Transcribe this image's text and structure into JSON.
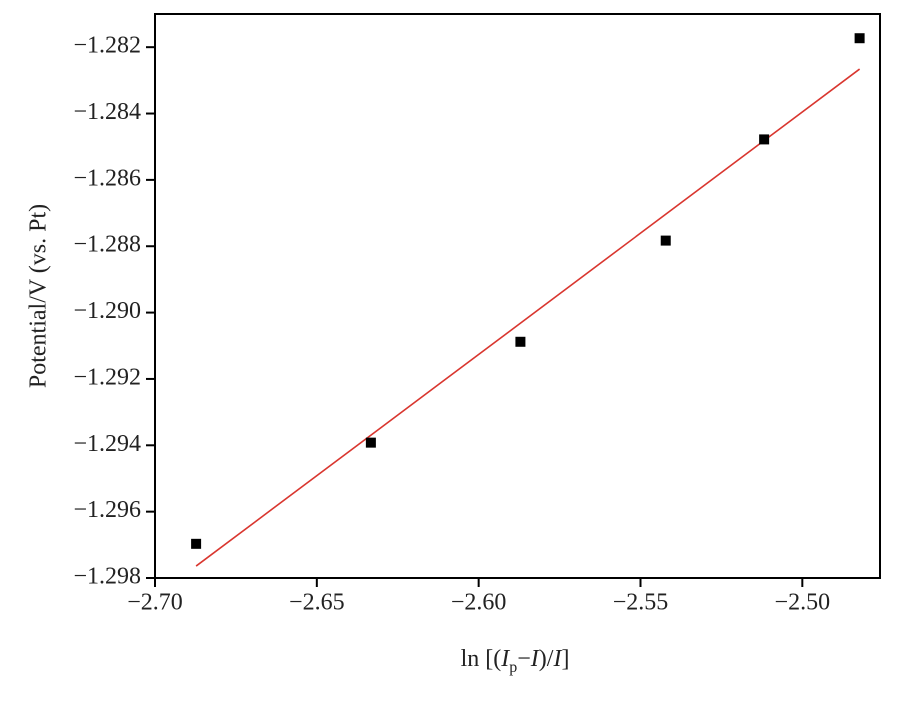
{
  "chart_data": {
    "type": "scatter",
    "x_label": [
      "ln [(",
      "I",
      "p",
      "−",
      "I",
      ")/",
      "I",
      "]"
    ],
    "y_label": "Potential/V (vs. Pt)",
    "x": [
      -2.6873,
      -2.6333,
      -2.5871,
      -2.5422,
      -2.5118,
      -2.4823
    ],
    "series": [
      {
        "color": "#000000",
        "values": [
          -1.29697,
          -1.29392,
          -1.29088,
          -1.28783,
          -1.28478,
          -1.28173
        ]
      }
    ],
    "fit": {
      "color": "#d9362f",
      "x": [
        -2.6873,
        -2.4823
      ],
      "y": [
        -1.29764,
        -1.28266
      ]
    },
    "xlim": [
      -2.7,
      -2.476
    ],
    "ylim": [
      -1.298,
      -1.281
    ],
    "xticks": [
      {
        "value": -2.7,
        "label": "−2.70"
      },
      {
        "value": -2.65,
        "label": "−2.65"
      },
      {
        "value": -2.6,
        "label": "−2.60"
      },
      {
        "value": -2.55,
        "label": "−2.55"
      },
      {
        "value": -2.5,
        "label": "−2.50"
      }
    ],
    "yticks": [
      {
        "value": -1.298,
        "label": "−1.298"
      },
      {
        "value": -1.296,
        "label": "−1.296"
      },
      {
        "value": -1.294,
        "label": "−1.294"
      },
      {
        "value": -1.292,
        "label": "−1.292"
      },
      {
        "value": -1.29,
        "label": "−1.290"
      },
      {
        "value": -1.288,
        "label": "−1.288"
      },
      {
        "value": -1.286,
        "label": "−1.286"
      },
      {
        "value": -1.284,
        "label": "−1.284"
      },
      {
        "value": -1.282,
        "label": "−1.282"
      }
    ]
  }
}
